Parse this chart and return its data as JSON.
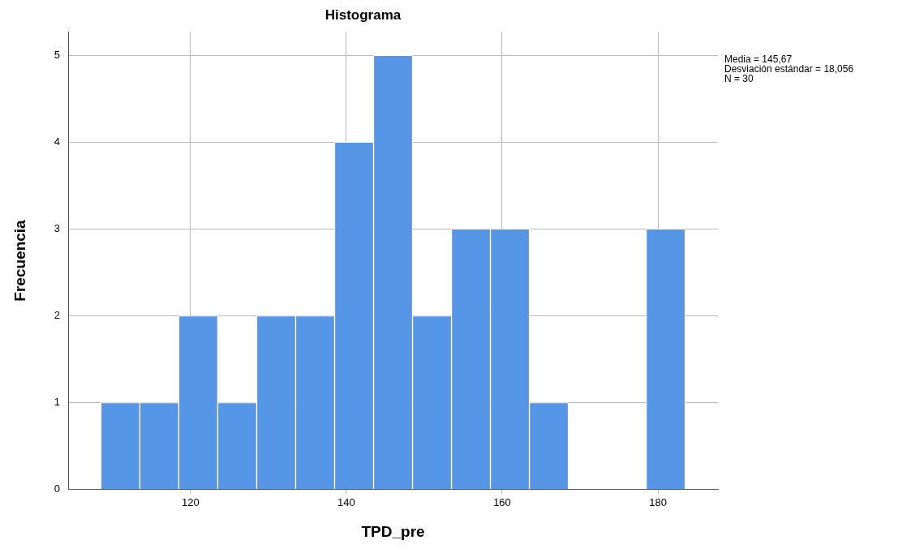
{
  "chart_data": {
    "type": "histogram",
    "title": "Histograma",
    "xlabel": "TPD_pre",
    "ylabel": "Frecuencia",
    "bins": [
      108.5,
      113.5,
      118.5,
      123.5,
      128.5,
      133.5,
      138.5,
      143.5,
      148.5,
      153.5,
      158.5,
      163.5,
      168.5,
      173.5,
      178.5,
      183.5
    ],
    "values": [
      1,
      1,
      2,
      1,
      2,
      2,
      4,
      5,
      2,
      3,
      3,
      1,
      0,
      0,
      3
    ],
    "color": "#5596e6",
    "xlim": [
      104.3,
      187.7
    ],
    "xticks": [
      120,
      140,
      160,
      180
    ],
    "ylim": [
      0,
      5.27
    ],
    "yticks": [
      0,
      1,
      2,
      3,
      4,
      5
    ],
    "grid": true,
    "legend": false,
    "annotations": [
      "Media = 145,67",
      "Desviación estándar = 18,056",
      "N = 30"
    ]
  }
}
